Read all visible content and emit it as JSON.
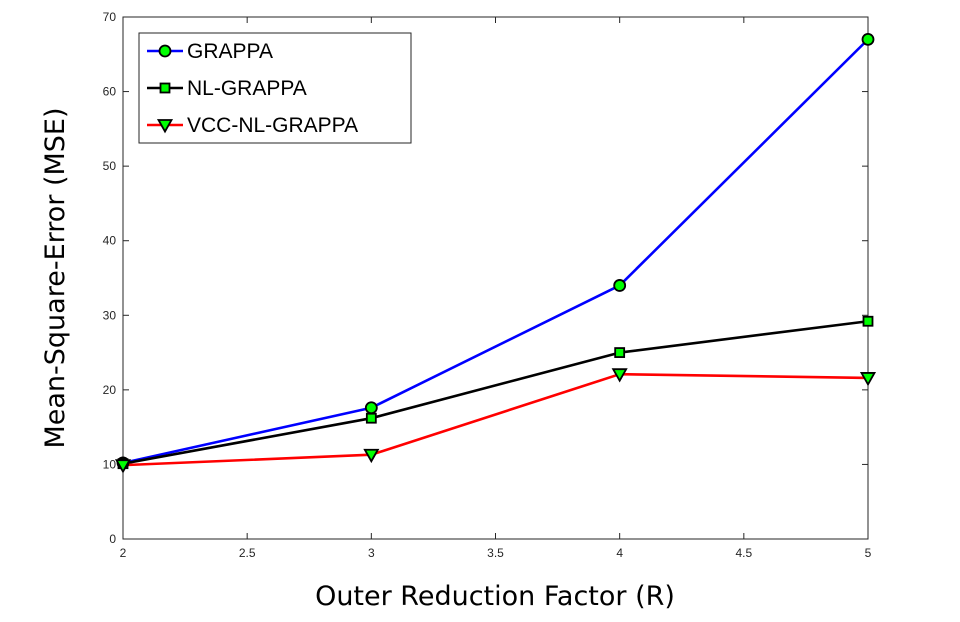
{
  "chart_data": {
    "type": "line",
    "title": "",
    "xlabel": "Outer Reduction Factor (R)",
    "ylabel": "Mean-Square-Error (MSE)",
    "xlim": [
      2,
      5
    ],
    "ylim": [
      0,
      70
    ],
    "xticks": [
      "2",
      "2.5",
      "3",
      "3.5",
      "4",
      "4.5",
      "5"
    ],
    "yticks": [
      "0",
      "10",
      "20",
      "30",
      "40",
      "50",
      "60",
      "70"
    ],
    "grid": false,
    "legend_position": "top-left",
    "x": [
      2,
      3,
      4,
      5
    ],
    "series": [
      {
        "name": "GRAPPA",
        "values": [
          10.2,
          17.6,
          34.0,
          67.0
        ],
        "color": "#0000ff",
        "marker": "circle",
        "marker_fill": "#00ff00"
      },
      {
        "name": "NL-GRAPPA",
        "values": [
          10.1,
          16.2,
          25.0,
          29.2
        ],
        "color": "#000000",
        "marker": "square",
        "marker_fill": "#00ff00"
      },
      {
        "name": "VCC-NL-GRAPPA",
        "values": [
          9.9,
          11.3,
          22.1,
          21.6
        ],
        "color": "#ff0000",
        "marker": "triangle-down",
        "marker_fill": "#00ff00"
      }
    ]
  }
}
